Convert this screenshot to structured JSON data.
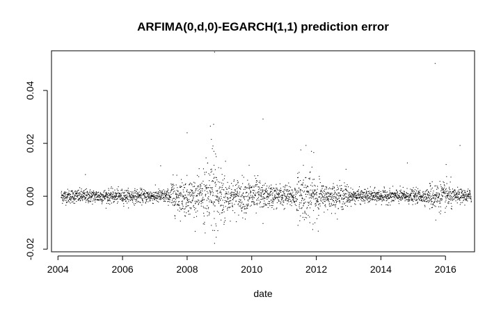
{
  "chart_data": {
    "type": "scatter",
    "title": "ARFIMA(0,d,0)-EGARCH(1,1) prediction error",
    "xlabel": "date",
    "ylabel": "",
    "xlim": [
      2003.8,
      2016.9
    ],
    "ylim": [
      -0.021,
      0.055
    ],
    "xticks": [
      "2004",
      "2006",
      "2008",
      "2010",
      "2012",
      "2014",
      "2016"
    ],
    "yticks": [
      "-0.02",
      "0.00",
      "0.02",
      "0.04"
    ],
    "grid": false,
    "marker_color": "#000000",
    "date_range": [
      2004.1,
      2016.8
    ],
    "series": [
      {
        "points": [
          {
            "x": 2008.85,
            "y": 0.0545
          },
          {
            "x": 2015.68,
            "y": 0.0502
          },
          {
            "x": 2010.35,
            "y": 0.0292
          },
          {
            "x": 2008.72,
            "y": 0.0265
          },
          {
            "x": 2008.82,
            "y": 0.0272
          },
          {
            "x": 2008.0,
            "y": 0.024
          },
          {
            "x": 2008.75,
            "y": 0.0215
          },
          {
            "x": 2008.8,
            "y": 0.019
          },
          {
            "x": 2008.78,
            "y": 0.018
          },
          {
            "x": 2008.83,
            "y": 0.017
          },
          {
            "x": 2008.88,
            "y": 0.016
          },
          {
            "x": 2008.9,
            "y": 0.015
          },
          {
            "x": 2011.68,
            "y": 0.0192
          },
          {
            "x": 2011.52,
            "y": 0.0175
          },
          {
            "x": 2011.85,
            "y": 0.017
          },
          {
            "x": 2011.92,
            "y": 0.0165
          },
          {
            "x": 2016.45,
            "y": 0.0192
          },
          {
            "x": 2016.02,
            "y": 0.012
          },
          {
            "x": 2007.18,
            "y": 0.0115
          },
          {
            "x": 2014.82,
            "y": 0.0126
          },
          {
            "x": 2009.92,
            "y": 0.0117
          },
          {
            "x": 2011.6,
            "y": 0.0117
          },
          {
            "x": 2012.92,
            "y": 0.0102
          },
          {
            "x": 2004.85,
            "y": 0.0082
          },
          {
            "x": 2008.85,
            "y": -0.0178
          },
          {
            "x": 2008.9,
            "y": -0.0155
          },
          {
            "x": 2008.95,
            "y": -0.013
          },
          {
            "x": 2008.75,
            "y": -0.011
          },
          {
            "x": 2011.9,
            "y": -0.0105
          },
          {
            "x": 2011.8,
            "y": -0.01
          },
          {
            "x": 2010.35,
            "y": -0.0103
          },
          {
            "x": 2015.7,
            "y": -0.009
          },
          {
            "x": 2009.05,
            "y": -0.009
          },
          {
            "x": 2007.95,
            "y": -0.0075
          }
        ]
      }
    ]
  }
}
